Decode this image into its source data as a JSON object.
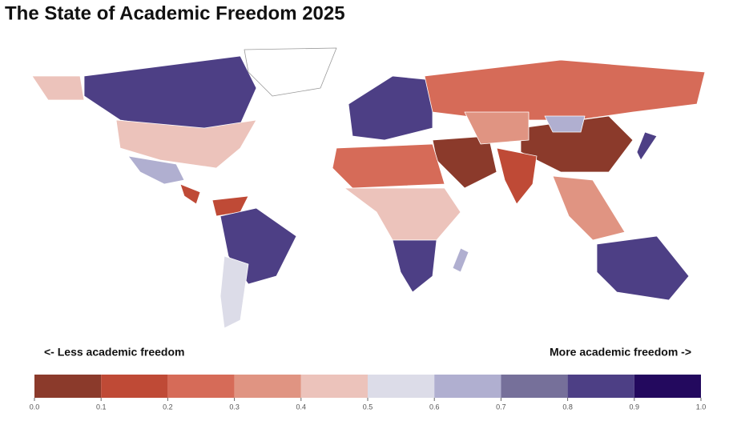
{
  "title": "The State of Academic Freedom 2025",
  "legend_left": "<- Less academic freedom",
  "legend_right": "More academic freedom ->",
  "regions": {
    "values": [
      0.85,
      0.45,
      0.45,
      0.65,
      0.1,
      0.15,
      0.85,
      0.55,
      null,
      0.85,
      0.2,
      0.05,
      0.05,
      0.15,
      0.2,
      0.4,
      0.85,
      0.35,
      0.85,
      0.35,
      0.6,
      0.85,
      0.6
    ]
  },
  "colorbar": {
    "ticks": [
      {
        "value": 0,
        "label": "0.0"
      },
      0.1,
      0.2,
      0.3,
      0.4,
      0.5,
      0.6,
      0.7,
      0.8,
      0.9,
      {
        "value": 1,
        "label": "1.0"
      }
    ],
    "colors": [
      "#8b3a2b",
      "#bf4a36",
      "#d66b58",
      "#e09482",
      "#ecc3bb",
      "#dcdce8",
      "#b0afd0",
      "#76709a",
      "#4d3f85",
      "#23095e"
    ]
  }
}
